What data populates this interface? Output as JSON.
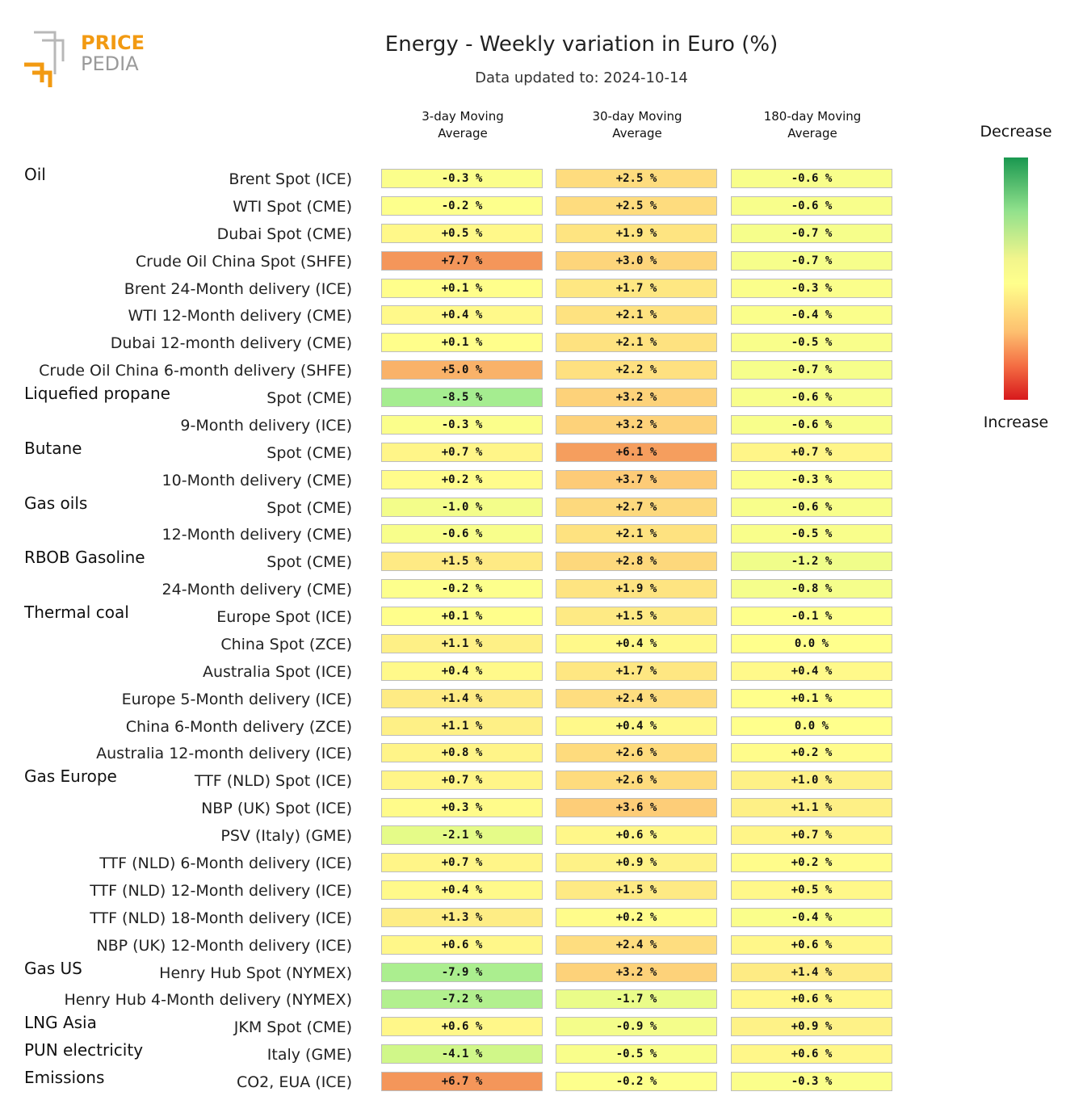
{
  "brand": {
    "line1": "PRICE",
    "line2": "PEDIA"
  },
  "title": "Energy - Weekly variation in Euro (%)",
  "subtitle": "Data updated to: 2024-10-14",
  "legend": {
    "top": "Decrease",
    "bottom": "Increase"
  },
  "colors": {
    "decrease_strong": "#1a9850",
    "neutral": "#ffff8c",
    "increase_strong": "#d7191c"
  },
  "chart_data": {
    "type": "table",
    "title": "Energy - Weekly variation in Euro (%)",
    "columns": [
      {
        "line1": "3-day Moving",
        "line2": "Average"
      },
      {
        "line1": "30-day Moving",
        "line2": "Average"
      },
      {
        "line1": "180-day Moving",
        "line2": "Average"
      }
    ],
    "rows": [
      {
        "group": "Oil",
        "label": "Brent Spot (ICE)",
        "values": [
          -0.3,
          2.5,
          -0.6
        ]
      },
      {
        "group": "",
        "label": "WTI Spot (CME)",
        "values": [
          -0.2,
          2.5,
          -0.6
        ]
      },
      {
        "group": "",
        "label": "Dubai Spot (CME)",
        "values": [
          0.5,
          1.9,
          -0.7
        ]
      },
      {
        "group": "",
        "label": "Crude Oil China Spot (SHFE)",
        "values": [
          7.7,
          3.0,
          -0.7
        ]
      },
      {
        "group": "",
        "label": "Brent 24-Month delivery (ICE)",
        "values": [
          0.1,
          1.7,
          -0.3
        ]
      },
      {
        "group": "",
        "label": "WTI 12-Month delivery (CME)",
        "values": [
          0.4,
          2.1,
          -0.4
        ]
      },
      {
        "group": "",
        "label": "Dubai 12-month delivery (CME)",
        "values": [
          0.1,
          2.1,
          -0.5
        ]
      },
      {
        "group": "",
        "label": "Crude Oil China 6-month delivery (SHFE)",
        "values": [
          5.0,
          2.2,
          -0.7
        ]
      },
      {
        "group": "Liquefied propane",
        "label": "Spot (CME)",
        "values": [
          -8.5,
          3.2,
          -0.6
        ]
      },
      {
        "group": "",
        "label": "9-Month delivery (ICE)",
        "values": [
          -0.3,
          3.2,
          -0.6
        ]
      },
      {
        "group": "Butane",
        "label": "Spot (CME)",
        "values": [
          0.7,
          6.1,
          0.7
        ]
      },
      {
        "group": "",
        "label": "10-Month delivery (CME)",
        "values": [
          0.2,
          3.7,
          -0.3
        ]
      },
      {
        "group": "Gas oils",
        "label": "Spot (CME)",
        "values": [
          -1.0,
          2.7,
          -0.6
        ]
      },
      {
        "group": "",
        "label": "12-Month delivery (CME)",
        "values": [
          -0.6,
          2.1,
          -0.5
        ]
      },
      {
        "group": "RBOB Gasoline",
        "label": "Spot (CME)",
        "values": [
          1.5,
          2.8,
          -1.2
        ]
      },
      {
        "group": "",
        "label": "24-Month delivery (CME)",
        "values": [
          -0.2,
          1.9,
          -0.8
        ]
      },
      {
        "group": "Thermal coal",
        "label": "Europe Spot (ICE)",
        "values": [
          0.1,
          1.5,
          -0.1
        ]
      },
      {
        "group": "",
        "label": "China Spot (ZCE)",
        "values": [
          1.1,
          0.4,
          0.0
        ]
      },
      {
        "group": "",
        "label": "Australia Spot (ICE)",
        "values": [
          0.4,
          1.7,
          0.4
        ]
      },
      {
        "group": "",
        "label": "Europe 5-Month delivery (ICE)",
        "values": [
          1.4,
          2.4,
          0.1
        ]
      },
      {
        "group": "",
        "label": "China 6-Month delivery (ZCE)",
        "values": [
          1.1,
          0.4,
          0.0
        ]
      },
      {
        "group": "",
        "label": "Australia 12-month delivery (ICE)",
        "values": [
          0.8,
          2.6,
          0.2
        ]
      },
      {
        "group": "Gas Europe",
        "label": "TTF (NLD) Spot (ICE)",
        "values": [
          0.7,
          2.6,
          1.0
        ]
      },
      {
        "group": "",
        "label": "NBP (UK) Spot (ICE)",
        "values": [
          0.3,
          3.6,
          1.1
        ]
      },
      {
        "group": "",
        "label": "PSV (Italy) (GME)",
        "values": [
          -2.1,
          0.6,
          0.7
        ]
      },
      {
        "group": "",
        "label": "TTF (NLD) 6-Month delivery (ICE)",
        "values": [
          0.7,
          0.9,
          0.2
        ]
      },
      {
        "group": "",
        "label": "TTF (NLD) 12-Month delivery (ICE)",
        "values": [
          0.4,
          1.5,
          0.5
        ]
      },
      {
        "group": "",
        "label": "TTF (NLD) 18-Month delivery (ICE)",
        "values": [
          1.3,
          0.2,
          -0.4
        ]
      },
      {
        "group": "",
        "label": "NBP (UK) 12-Month delivery (ICE)",
        "values": [
          0.6,
          2.4,
          0.6
        ]
      },
      {
        "group": "Gas US",
        "label": "Henry Hub Spot (NYMEX)",
        "values": [
          -7.9,
          3.2,
          1.4
        ]
      },
      {
        "group": "",
        "label": "Henry Hub 4-Month delivery (NYMEX)",
        "values": [
          -7.2,
          -1.7,
          0.6
        ]
      },
      {
        "group": "LNG Asia",
        "label": "JKM Spot (CME)",
        "values": [
          0.6,
          -0.9,
          0.9
        ]
      },
      {
        "group": "PUN electricity",
        "label": "Italy (GME)",
        "values": [
          -4.1,
          -0.5,
          0.6
        ]
      },
      {
        "group": "Emissions",
        "label": "CO2, EUA (ICE)",
        "values": [
          6.7,
          -0.2,
          -0.3
        ]
      }
    ]
  }
}
